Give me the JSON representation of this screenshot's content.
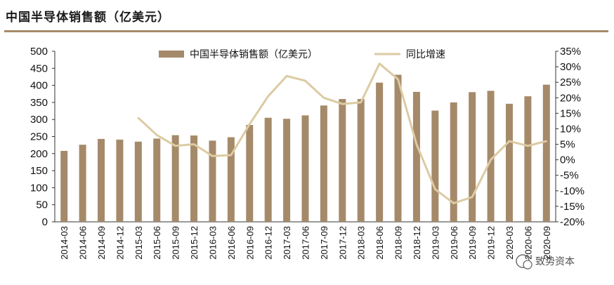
{
  "page": {
    "title": "中国半导体销售额（亿美元）",
    "watermark": "致势资本"
  },
  "colors": {
    "bar": "#a58a6a",
    "line": "#dccba3",
    "rule": "#a58a6a",
    "axis": "#333333"
  },
  "chart_data": {
    "type": "bar+line",
    "title": "中国半导体销售额（亿美元）",
    "categories": [
      "2014-03",
      "2014-06",
      "2014-09",
      "2014-12",
      "2015-03",
      "2015-06",
      "2015-09",
      "2015-12",
      "2016-03",
      "2016-06",
      "2016-09",
      "2016-12",
      "2017-03",
      "2017-06",
      "2017-09",
      "2017-12",
      "2018-03",
      "2018-06",
      "2018-09",
      "2018-12",
      "2019-03",
      "2019-06",
      "2019-09",
      "2019-12",
      "2020-03",
      "2020-06",
      "2020-09"
    ],
    "series": [
      {
        "name": "中国半导体销售额（亿美元）",
        "type": "bar",
        "axis": "left",
        "values": [
          208,
          226,
          243,
          241,
          235,
          244,
          254,
          253,
          238,
          248,
          284,
          305,
          302,
          312,
          341,
          360,
          360,
          408,
          431,
          381,
          326,
          350,
          380,
          384,
          346,
          368,
          402
        ]
      },
      {
        "name": "同比增速",
        "type": "line",
        "axis": "right",
        "unit": "%",
        "values": [
          null,
          null,
          null,
          null,
          13.5,
          8.0,
          4.5,
          5.0,
          1.2,
          1.5,
          11.5,
          20.5,
          27.0,
          25.5,
          20.0,
          18.0,
          18.5,
          31.0,
          26.0,
          5.0,
          -9.5,
          -14.0,
          -12.0,
          0.0,
          6.0,
          4.5,
          6.0
        ]
      }
    ],
    "y_left": {
      "min": 0,
      "max": 500,
      "step": 50,
      "ticks": [
        "0",
        "50",
        "100",
        "150",
        "200",
        "250",
        "300",
        "350",
        "400",
        "450",
        "500"
      ]
    },
    "y_right": {
      "min": -20,
      "max": 35,
      "step": 5,
      "ticks": [
        "-20%",
        "-15%",
        "-10%",
        "-5%",
        "0%",
        "5%",
        "10%",
        "15%",
        "20%",
        "25%",
        "30%",
        "35%"
      ]
    },
    "legend": [
      "中国半导体销售额（亿美元）",
      "同比增速"
    ],
    "legend_position": "top-center",
    "grid": false
  }
}
